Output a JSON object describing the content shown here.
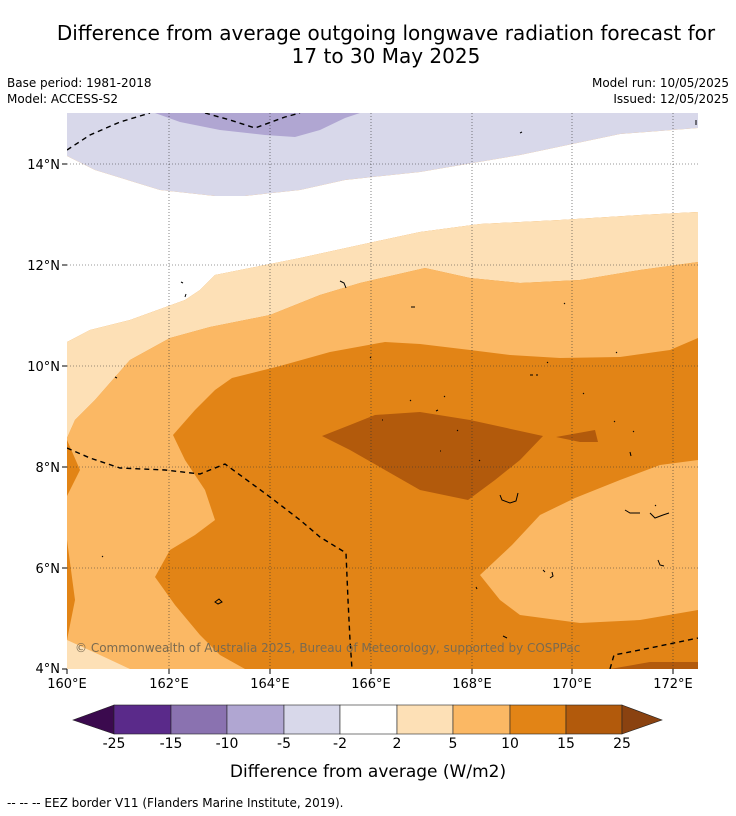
{
  "header": {
    "title_line1": "Difference from average outgoing longwave radiation forecast for",
    "title_line2": "17 to 30 May 2025",
    "base_period": "Base period: 1981-2018",
    "model": "Model: ACCESS-S2",
    "model_run": "Model run: 10/05/2025",
    "issued": "Issued: 12/05/2025"
  },
  "map": {
    "lon_labels": [
      "160°E",
      "162°E",
      "164°E",
      "166°E",
      "168°E",
      "170°E",
      "172°E"
    ],
    "lat_labels": [
      "14°N",
      "12°N",
      "10°N",
      "8°N",
      "6°N",
      "4°N"
    ],
    "copyright": "© Commonwealth of Australia 2025, Bureau of Meteorology, supported by COSPPac",
    "colors": {
      "neg15_10": "#8a72b0",
      "neg10_5": "#b0a6d2",
      "neg5_2": "#d8d8ea",
      "neutral": "#ffffff",
      "pos2_5": "#fde0b6",
      "pos5_10": "#fbb864",
      "pos10_15": "#e28416",
      "pos15_25": "#b25a0c"
    }
  },
  "colorbar": {
    "ticks": [
      "-25",
      "-15",
      "-10",
      "-5",
      "-2",
      "2",
      "5",
      "10",
      "15",
      "25"
    ],
    "colors": [
      "#5a2a8a",
      "#8a72b0",
      "#b0a6d2",
      "#d8d8ea",
      "#ffffff",
      "#fde0b6",
      "#fbb864",
      "#e28416",
      "#b25a0c"
    ],
    "low_extend_color": "#3b0a4e",
    "high_extend_color": "#8a4210",
    "title": "Difference from average (W/m2)"
  },
  "footnote": "--  --  -- EEZ border V11 (Flanders Marine Institute, 2019)."
}
